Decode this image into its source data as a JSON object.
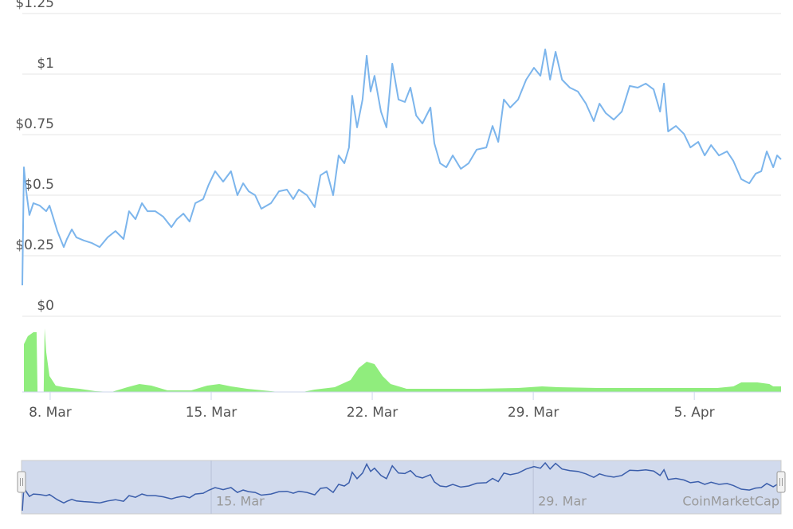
{
  "chart_data": [
    {
      "type": "line",
      "color": "#7cb5ec",
      "grid": true,
      "xlim": [
        6.79,
        39.77
      ],
      "ylim": [
        0,
        1.25
      ],
      "yticks": [
        {
          "value": 0,
          "label": "$0"
        },
        {
          "value": 0.25,
          "label": "$0.25"
        },
        {
          "value": 0.5,
          "label": "$0.5"
        },
        {
          "value": 0.75,
          "label": "$0.75"
        },
        {
          "value": 1,
          "label": "$1"
        },
        {
          "value": 1.25,
          "label": "$1.25"
        }
      ],
      "xticks": [
        {
          "value": 8,
          "label": "8. Mar"
        },
        {
          "value": 15,
          "label": "15. Mar"
        },
        {
          "value": 22,
          "label": "22. Mar"
        },
        {
          "value": 29,
          "label": "29. Mar"
        },
        {
          "value": 36,
          "label": "5. Apr"
        }
      ],
      "navigator_xticks": [
        {
          "value": 15,
          "label": "15. Mar"
        },
        {
          "value": 29,
          "label": "29. Mar"
        }
      ],
      "credit": "CoinMarketCap",
      "x": [
        6.79,
        6.86,
        6.96,
        7.1,
        7.27,
        7.55,
        7.83,
        7.97,
        8.1,
        8.31,
        8.59,
        8.73,
        8.94,
        9.14,
        9.46,
        9.8,
        10.15,
        10.5,
        10.84,
        11.19,
        11.43,
        11.71,
        11.99,
        12.23,
        12.57,
        12.92,
        13.27,
        13.51,
        13.79,
        14.06,
        14.31,
        14.65,
        14.89,
        15.17,
        15.52,
        15.86,
        16.14,
        16.39,
        16.63,
        16.91,
        17.18,
        17.6,
        17.95,
        18.29,
        18.57,
        18.81,
        19.16,
        19.5,
        19.75,
        20.02,
        20.3,
        20.54,
        20.79,
        20.99,
        21.13,
        21.34,
        21.58,
        21.76,
        21.93,
        22.1,
        22.38,
        22.62,
        22.87,
        23.14,
        23.42,
        23.66,
        23.91,
        24.18,
        24.53,
        24.7,
        24.95,
        25.22,
        25.5,
        25.85,
        26.19,
        26.54,
        26.96,
        27.23,
        27.48,
        27.72,
        28.0,
        28.34,
        28.69,
        29.03,
        29.31,
        29.52,
        29.73,
        29.97,
        30.25,
        30.59,
        30.94,
        31.29,
        31.63,
        31.88,
        32.15,
        32.5,
        32.85,
        33.19,
        33.54,
        33.89,
        34.23,
        34.51,
        34.68,
        34.86,
        35.2,
        35.55,
        35.83,
        36.17,
        36.45,
        36.73,
        37.07,
        37.42,
        37.7,
        38.04,
        38.39,
        38.67,
        38.91,
        39.15,
        39.43,
        39.6,
        39.77
      ],
      "values": [
        0.128,
        0.615,
        0.516,
        0.418,
        0.467,
        0.457,
        0.434,
        0.457,
        0.418,
        0.352,
        0.286,
        0.319,
        0.359,
        0.326,
        0.313,
        0.303,
        0.286,
        0.326,
        0.352,
        0.319,
        0.434,
        0.401,
        0.467,
        0.434,
        0.434,
        0.411,
        0.368,
        0.401,
        0.424,
        0.391,
        0.467,
        0.484,
        0.543,
        0.599,
        0.556,
        0.599,
        0.5,
        0.549,
        0.516,
        0.5,
        0.444,
        0.467,
        0.516,
        0.523,
        0.484,
        0.523,
        0.5,
        0.451,
        0.582,
        0.599,
        0.5,
        0.664,
        0.632,
        0.697,
        0.911,
        0.78,
        0.895,
        1.076,
        0.928,
        0.993,
        0.845,
        0.78,
        1.043,
        0.895,
        0.885,
        0.944,
        0.829,
        0.796,
        0.862,
        0.714,
        0.632,
        0.615,
        0.664,
        0.609,
        0.632,
        0.688,
        0.697,
        0.786,
        0.72,
        0.895,
        0.862,
        0.895,
        0.977,
        1.026,
        0.993,
        1.102,
        0.977,
        1.092,
        0.977,
        0.944,
        0.928,
        0.878,
        0.806,
        0.878,
        0.839,
        0.812,
        0.845,
        0.951,
        0.944,
        0.961,
        0.937,
        0.845,
        0.961,
        0.763,
        0.786,
        0.753,
        0.697,
        0.72,
        0.664,
        0.707,
        0.664,
        0.681,
        0.641,
        0.566,
        0.549,
        0.589,
        0.599,
        0.681,
        0.615,
        0.664,
        0.648
      ]
    },
    {
      "type": "area",
      "color": "#90ed7d",
      "xlim": [
        6.79,
        39.77
      ],
      "ylim": [
        0,
        80
      ],
      "x": [
        6.86,
        7.03,
        7.27,
        7.41,
        7.45,
        7.72,
        7.76,
        7.83,
        7.97,
        8.24,
        8.59,
        9.28,
        9.97,
        10.67,
        11.36,
        11.88,
        12.4,
        13.1,
        14.13,
        14.83,
        15.35,
        15.86,
        16.56,
        17.25,
        17.95,
        18.98,
        19.5,
        20.37,
        21.06,
        21.41,
        21.76,
        22.1,
        22.45,
        22.8,
        23.49,
        24.88,
        26.61,
        28.34,
        29.38,
        30.07,
        31.81,
        33.54,
        35.27,
        37.0,
        37.7,
        38.04,
        38.74,
        39.26,
        39.43,
        39.77
      ],
      "values": [
        60,
        70,
        75,
        75,
        0,
        0,
        80,
        50,
        20,
        8,
        6,
        4,
        1,
        0,
        6,
        10,
        8,
        2,
        2,
        8,
        10,
        7,
        4,
        2,
        0,
        0,
        3,
        6,
        15,
        30,
        38,
        35,
        20,
        10,
        4,
        4,
        4,
        5,
        7,
        6,
        5,
        5,
        5,
        5,
        7,
        12,
        12,
        10,
        7,
        7
      ]
    }
  ]
}
